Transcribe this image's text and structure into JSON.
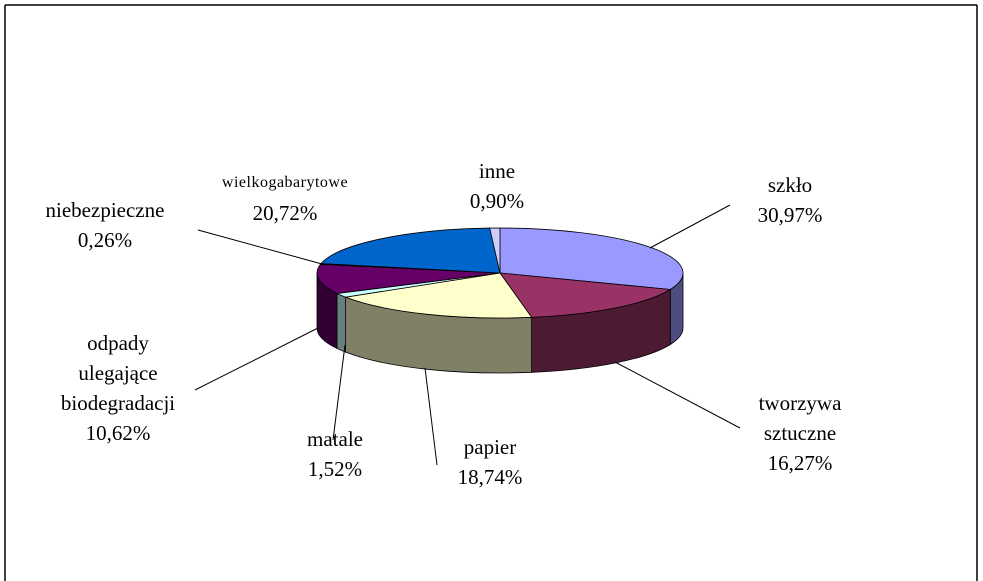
{
  "chart_data": {
    "type": "pie3d",
    "categories": [
      "szkło",
      "tworzywa sztuczne",
      "papier",
      "matale",
      "odpady ulegające biodegradacji",
      "niebezpieczne",
      "wielkogabarytowe",
      "inne"
    ],
    "values": [
      30.97,
      16.27,
      18.74,
      1.52,
      10.62,
      0.26,
      20.72,
      0.9
    ],
    "value_labels": [
      "30,97%",
      "16,27%",
      "18,74%",
      "1,52%",
      "10,62%",
      "0,26%",
      "20,72%",
      "0,90%"
    ],
    "colors": [
      "#9999ff",
      "#993366",
      "#ffffcc",
      "#ccffff",
      "#660066",
      "#ff8080",
      "#0066cc",
      "#ccccff"
    ]
  }
}
